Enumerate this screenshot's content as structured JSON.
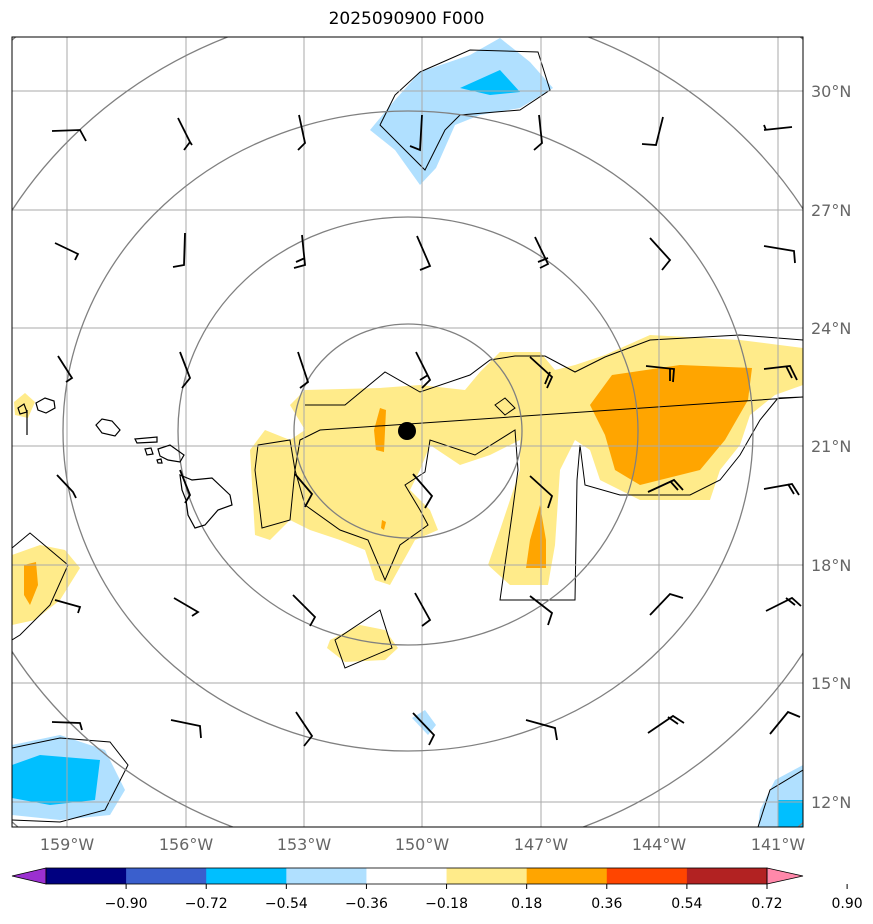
{
  "title": "2025090900 F000",
  "lat_labels": [
    "30°N",
    "27°N",
    "24°N",
    "21°N",
    "18°N",
    "15°N",
    "12°N"
  ],
  "lon_labels": [
    "159°W",
    "156°W",
    "153°W",
    "150°W",
    "147°W",
    "144°W",
    "141°W"
  ],
  "colorbar": {
    "ticks": [
      "−0.90",
      "−0.72",
      "−0.54",
      "−0.36",
      "−0.18",
      "0.18",
      "0.36",
      "0.54",
      "0.72",
      "0.90"
    ],
    "colors": [
      "#9b30d0",
      "#000080",
      "#3a5fcd",
      "#00bfff",
      "#b0e0ff",
      "#ffffff",
      "#ffeb8a",
      "#ffa500",
      "#ff4500",
      "#b22222",
      "#ff88aa"
    ]
  },
  "colors": {
    "grid": "#aaaaaa",
    "contour": "#808080",
    "coast": "#000000",
    "light_blue": "#b0e0ff",
    "mid_blue": "#00bfff",
    "light_yellow": "#ffeb8a",
    "orange": "#ffa500"
  },
  "storm_center": {
    "lat": 21.4,
    "lon": -150.4
  }
}
